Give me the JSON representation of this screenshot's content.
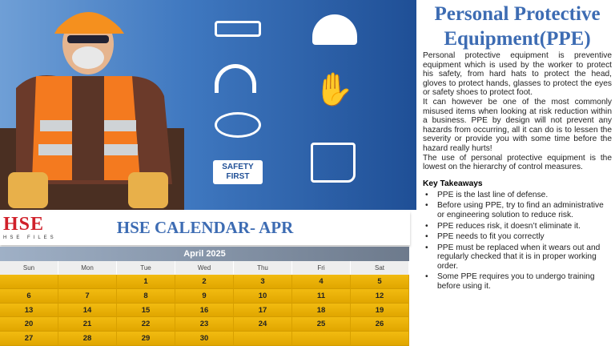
{
  "hero": {
    "safety_sign": "SAFETY FIRST",
    "icons": [
      "safety-glasses-icon",
      "hard-hat-icon",
      "ear-muffs-icon",
      "gloves-icon",
      "respirator-mask-icon",
      "safety-boot-icon"
    ]
  },
  "article": {
    "title": "Personal Protective Equipment(PPE)",
    "paragraphs": [
      "Personal protective equipment is preventive equipment which is used by the worker to protect his safety, from hard hats to protect the head, gloves to protect hands, glasses to protect the eyes or safety shoes to protect foot.",
      "It can however be one of the most commonly misused items when looking at risk reduction within a business. PPE by design will not prevent any hazards from occurring, all it can do is to lessen the severity or provide you with some time before the hazard really hurts!",
      "The use of personal protective equipment is the lowest on the hierarchy of control measures."
    ],
    "key_takeaways_heading": "Key Takeaways",
    "key_takeaways": [
      "PPE is the last line of defense.",
      "Before using PPE, try to find an administrative or engineering solution to reduce risk.",
      "PPE reduces risk, it doesn’t eliminate it.",
      "PPE needs to fit you correctly",
      "PPE must be replaced when it wears out and regularly checked that it is in proper working order.",
      "Some PPE requires you to undergo training before using it."
    ]
  },
  "calendar": {
    "logo_text": "HSE",
    "logo_sub": "HSE FILES",
    "title": "HSE CALENDAR- APR",
    "month": "April 2025",
    "weekdays": [
      "Sun",
      "Mon",
      "Tue",
      "Wed",
      "Thu",
      "Fri",
      "Sat"
    ],
    "weeks": [
      [
        "",
        "",
        "1",
        "2",
        "3",
        "4",
        "5"
      ],
      [
        "6",
        "7",
        "8",
        "9",
        "10",
        "11",
        "12"
      ],
      [
        "13",
        "14",
        "15",
        "16",
        "17",
        "18",
        "19"
      ],
      [
        "20",
        "21",
        "22",
        "23",
        "24",
        "25",
        "26"
      ],
      [
        "27",
        "28",
        "29",
        "30",
        "",
        "",
        ""
      ]
    ]
  },
  "colors": {
    "title_blue": "#3d6cb3",
    "calendar_gold": "#f2bb10",
    "logo_red": "#d0202a"
  }
}
